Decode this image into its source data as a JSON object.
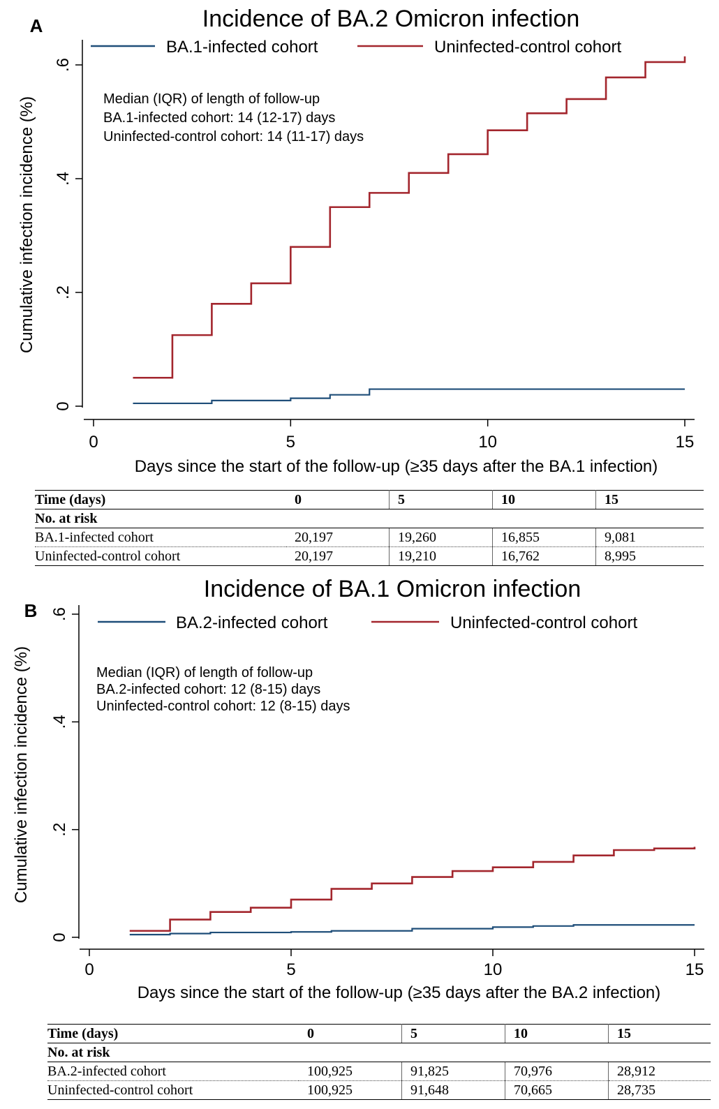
{
  "chart_data": [
    {
      "type": "line",
      "panel_label": "A",
      "title": "Incidence of BA.2 Omicron infection",
      "xlabel": "Days since the start of the follow-up (≥35 days after the BA.1 infection)",
      "ylabel": "Cumulative infection incidence (%)",
      "xlim": [
        0,
        15
      ],
      "ylim": [
        0,
        0.6
      ],
      "xticks": [
        0,
        5,
        10,
        15
      ],
      "xtick_labels": [
        "0",
        "5",
        "10",
        "15"
      ],
      "yticks": [
        0,
        0.2,
        0.4,
        0.6
      ],
      "ytick_labels": [
        "0",
        ".2",
        ".4",
        ".6"
      ],
      "legend_position": "top",
      "annotation": [
        "Median (IQR) of length of follow-up",
        " BA.1-infected cohort: 14 (12-17) days",
        " Uninfected-control cohort: 14 (11-17) days"
      ],
      "series": [
        {
          "name": "BA.1-infected cohort",
          "color": "#1f4e79",
          "step": true,
          "x": [
            1,
            3,
            5,
            6,
            7,
            15
          ],
          "y": [
            0.005,
            0.01,
            0.014,
            0.02,
            0.03,
            0.03
          ]
        },
        {
          "name": "Uninfected-control cohort",
          "color": "#a3262d",
          "step": true,
          "x": [
            1,
            2,
            3,
            4,
            5,
            6,
            7,
            8,
            9,
            10,
            11,
            12,
            13,
            14,
            15
          ],
          "y": [
            0.05,
            0.125,
            0.18,
            0.216,
            0.28,
            0.35,
            0.375,
            0.41,
            0.443,
            0.485,
            0.515,
            0.54,
            0.578,
            0.605,
            0.615
          ]
        }
      ],
      "risk_table": {
        "header": [
          "Time (days)",
          "0",
          "5",
          "10",
          "15"
        ],
        "subheader": "No. at risk",
        "rows": [
          [
            "BA.1-infected cohort",
            "20,197",
            "19,260",
            "16,855",
            "9,081"
          ],
          [
            "Uninfected-control cohort",
            "20,197",
            "19,210",
            "16,762",
            "8,995"
          ]
        ]
      }
    },
    {
      "type": "line",
      "panel_label": "B",
      "title": "Incidence of BA.1 Omicron infection",
      "xlabel": "Days since the start of the follow-up (≥35 days after the BA.2 infection)",
      "ylabel": "Cumulative infection incidence (%)",
      "xlim": [
        0,
        15
      ],
      "ylim": [
        0,
        0.6
      ],
      "xticks": [
        0,
        5,
        10,
        15
      ],
      "xtick_labels": [
        "0",
        "5",
        "10",
        "15"
      ],
      "yticks": [
        0,
        0.2,
        0.4,
        0.6
      ],
      "ytick_labels": [
        "0",
        ".2",
        ".4",
        ".6"
      ],
      "legend_position": "top",
      "annotation": [
        "Median (IQR) of length of follow-up",
        " BA.2-infected cohort: 12 (8-15) days",
        " Uninfected-control cohort: 12 (8-15) days"
      ],
      "series": [
        {
          "name": "BA.2-infected cohort",
          "color": "#1f4e79",
          "step": true,
          "x": [
            1,
            2,
            3,
            5,
            6,
            8,
            10,
            11,
            12,
            15
          ],
          "y": [
            0.005,
            0.007,
            0.009,
            0.01,
            0.012,
            0.016,
            0.019,
            0.021,
            0.023,
            0.023
          ]
        },
        {
          "name": "Uninfected-control cohort",
          "color": "#a3262d",
          "step": true,
          "x": [
            1,
            2,
            3,
            4,
            5,
            6,
            7,
            8,
            9,
            10,
            11,
            12,
            13,
            14,
            15
          ],
          "y": [
            0.012,
            0.033,
            0.047,
            0.055,
            0.07,
            0.09,
            0.1,
            0.112,
            0.123,
            0.13,
            0.14,
            0.152,
            0.162,
            0.165,
            0.168
          ]
        }
      ],
      "risk_table": {
        "header": [
          "Time (days)",
          "0",
          "5",
          "10",
          "15"
        ],
        "subheader": "No. at risk",
        "rows": [
          [
            "BA.2-infected cohort",
            "100,925",
            "91,825",
            "70,976",
            "28,912"
          ],
          [
            "Uninfected-control cohort",
            "100,925",
            "91,648",
            "70,665",
            "28,735"
          ]
        ]
      }
    }
  ]
}
